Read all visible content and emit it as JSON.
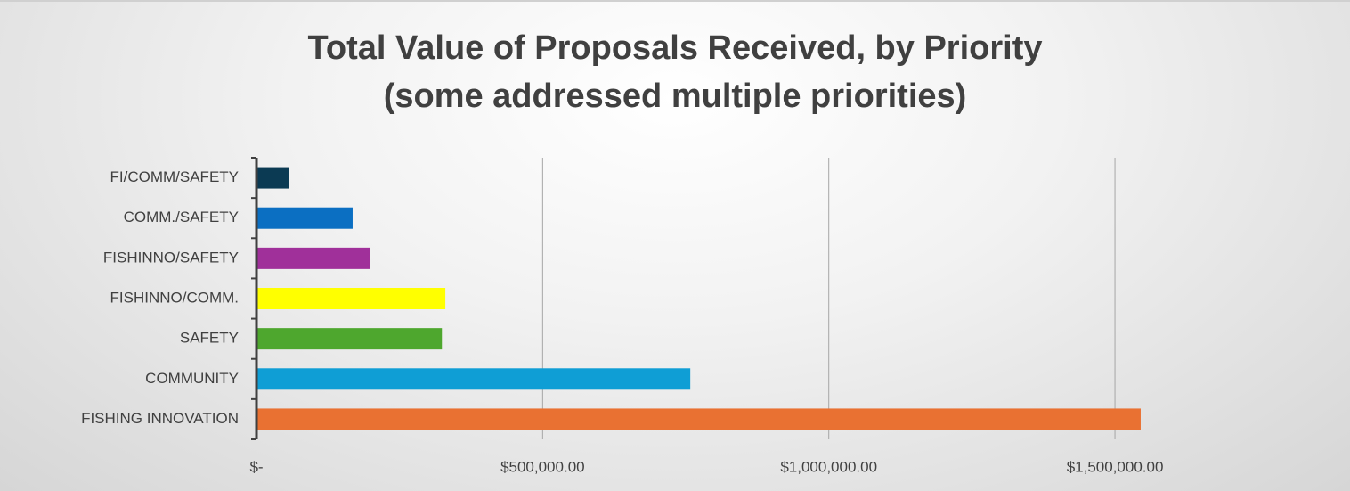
{
  "chart_data": {
    "type": "bar",
    "orientation": "horizontal",
    "title": "Total Value of Proposals Received, by Priority",
    "subtitle": "(some addressed multiple priorities)",
    "categories": [
      "FISHING INNOVATION",
      "COMMUNITY",
      "SAFETY",
      "FISHINNO/COMM.",
      "FISHINNO/SAFETY",
      "COMM./SAFETY",
      "FI/COMM/SAFETY"
    ],
    "values": [
      1545000,
      758000,
      324000,
      330000,
      198000,
      168000,
      56000
    ],
    "colors": [
      "#e97132",
      "#0f9ed5",
      "#4ea72e",
      "#ffff00",
      "#a0309a",
      "#0b6fc2",
      "#0b3a53"
    ],
    "xlim": [
      0,
      1750000
    ],
    "xticks": [
      {
        "value": 0,
        "label": "$-"
      },
      {
        "value": 500000,
        "label": "$500,000.00"
      },
      {
        "value": 1000000,
        "label": "$1,000,000.00"
      },
      {
        "value": 1500000,
        "label": "$1,500,000.00"
      }
    ],
    "grid": true
  }
}
